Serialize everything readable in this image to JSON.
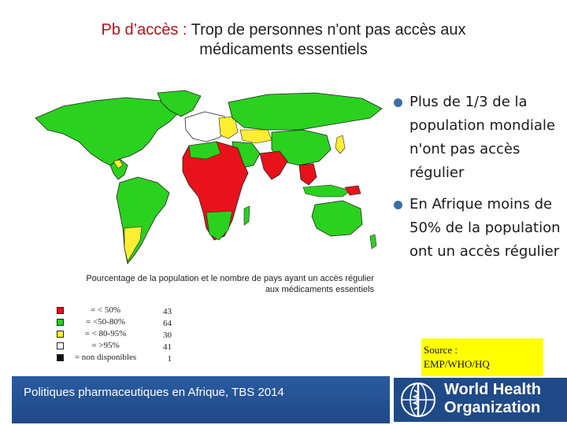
{
  "title": {
    "prefix": "Pb d’accès :",
    "line1_rest": "Trop de personnes n'ont pas accès aux",
    "line2": "médicaments essentiels"
  },
  "legend": {
    "caption_line1": "Pourcentage de la population et le nombre de pays ayant un accès régulier",
    "caption_line2": "aux médicaments essentiels",
    "items": [
      {
        "label": "= < 50%",
        "count": "43",
        "color": "#e8121a"
      },
      {
        "label": "= <50-80%",
        "count": "64",
        "color": "#2ad11f"
      },
      {
        "label": "= < 80-95%",
        "count": "30",
        "color": "#ffee33"
      },
      {
        "label": "= >95%",
        "count": "41",
        "color": "#ffffff"
      },
      {
        "label": "= non disponibles",
        "count": "1",
        "color": "#111111"
      }
    ]
  },
  "bullets": [
    "Plus de 1/3 de la population mondiale n'ont pas accès régulier",
    "En Afrique moins de 50% de la population ont un accès régulier"
  ],
  "source": {
    "line1": "Source :",
    "line2": "EMP/WHO/HQ"
  },
  "footer": {
    "text": "Politiques pharmaceutiques en Afrique, TBS 2014"
  },
  "who": {
    "line1": "World Health",
    "line2": "Organization"
  },
  "colors": {
    "title_prefix": "#b3131b",
    "red": "#e8121a",
    "green": "#2ad11f",
    "yellow": "#ffee33",
    "footer_blue": "#1f4a88",
    "bullet_dot": "#3a6ea5",
    "source_bg": "#ffff00"
  }
}
